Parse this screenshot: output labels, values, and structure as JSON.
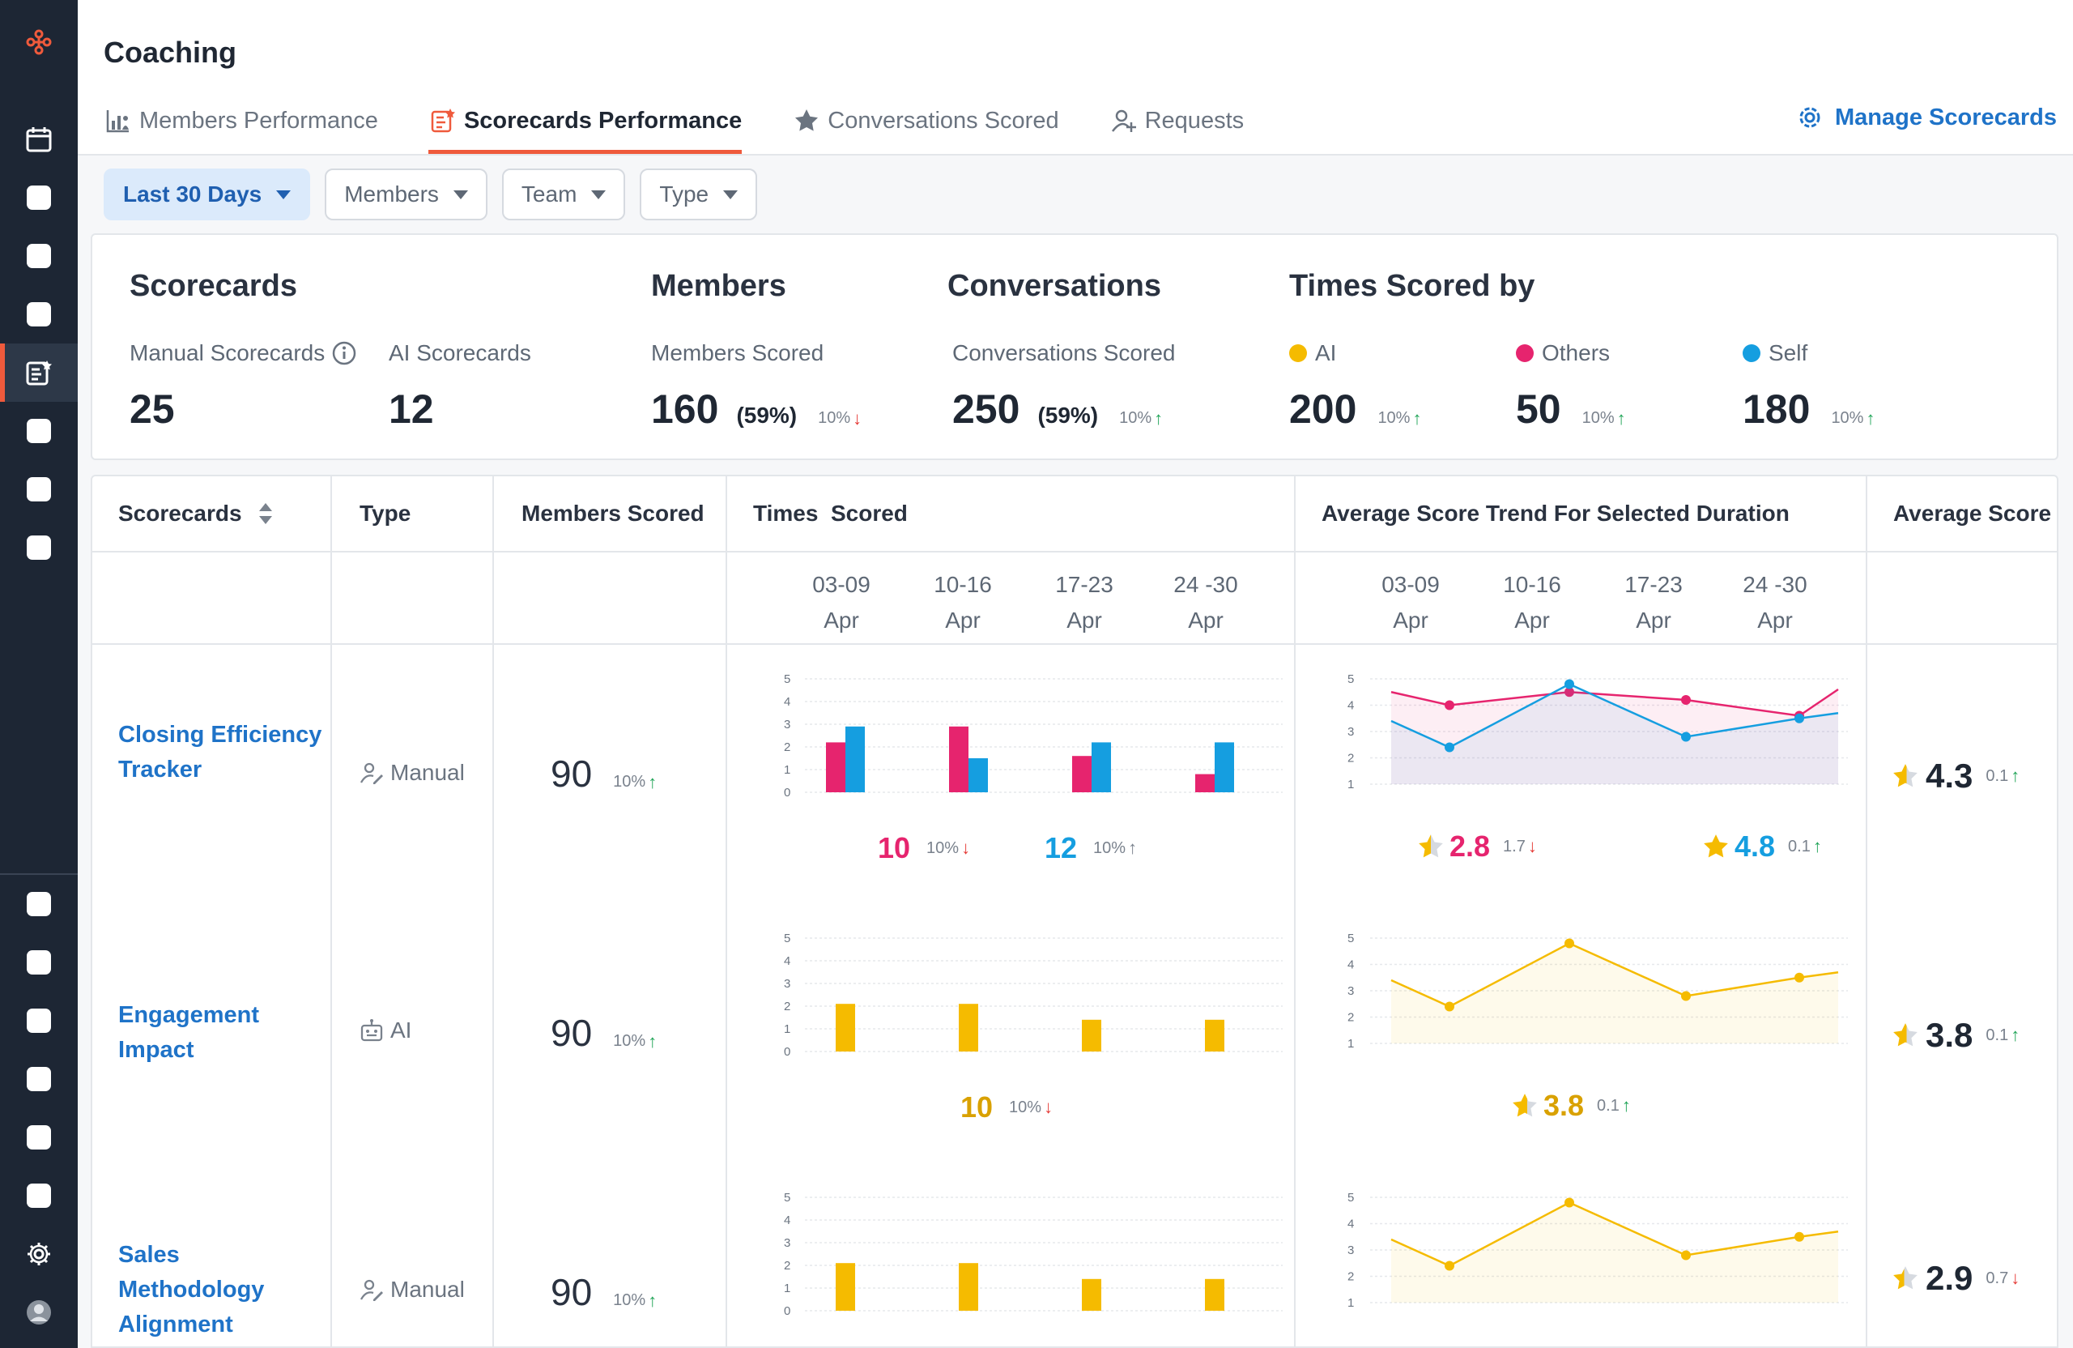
{
  "header": {
    "title": "Coaching",
    "tabs": [
      {
        "label": "Members Performance",
        "icon": "bar-chart-people-icon"
      },
      {
        "label": "Scorecards Performance",
        "icon": "scorecard-icon",
        "active": true
      },
      {
        "label": "Conversations Scored",
        "icon": "star-icon"
      },
      {
        "label": "Requests",
        "icon": "user-request-icon"
      }
    ],
    "manage_label": "Manage Scorecards"
  },
  "filters": [
    {
      "label": "Last 30 Days",
      "active": true
    },
    {
      "label": "Members"
    },
    {
      "label": "Team"
    },
    {
      "label": "Type"
    }
  ],
  "summary": {
    "scorecards": {
      "heading": "Scorecards",
      "manual_label": "Manual Scorecards",
      "manual_value": "25",
      "ai_label": "AI Scorecards",
      "ai_value": "12"
    },
    "members": {
      "heading": "Members",
      "label": "Members Scored",
      "value": "160",
      "pct": "(59%)",
      "delta": "10%",
      "dir": "down"
    },
    "conversations": {
      "heading": "Conversations",
      "label": "Conversations Scored",
      "value": "250",
      "pct": "(59%)",
      "delta": "10%",
      "dir": "up"
    },
    "times_scored": {
      "heading": "Times Scored by",
      "items": [
        {
          "label": "AI",
          "value": "200",
          "delta": "10%",
          "dir": "up",
          "color": "#f5bb00"
        },
        {
          "label": "Others",
          "value": "50",
          "delta": "10%",
          "dir": "up",
          "color": "#e6246e"
        },
        {
          "label": "Self",
          "value": "180",
          "delta": "10%",
          "dir": "up",
          "color": "#159ee0"
        }
      ]
    }
  },
  "table": {
    "headers": {
      "scorecards": "Scorecards",
      "type": "Type",
      "members_scored": "Members Scored",
      "times_scored": "Times  Scored",
      "trend": "Average Score Trend For Selected Duration",
      "average": "Average Score"
    },
    "weeks": [
      {
        "range": "03-09",
        "month": "Apr"
      },
      {
        "range": "10-16",
        "month": "Apr"
      },
      {
        "range": "17-23",
        "month": "Apr"
      },
      {
        "range": "24 -30",
        "month": "Apr"
      }
    ],
    "axis_ticks": [
      "5",
      "4",
      "3",
      "2",
      "1",
      "0"
    ],
    "trend_ticks": [
      "5",
      "4",
      "3",
      "2",
      "1"
    ],
    "rows": [
      {
        "name": "Closing Efficiency Tracker",
        "type": "Manual",
        "type_icon": "manual-user-icon",
        "members": "90",
        "members_delta": "10%",
        "members_dir": "up",
        "times_legend": [
          {
            "value": "10",
            "delta": "10%",
            "dir": "down",
            "color": "#e6246e"
          },
          {
            "value": "12",
            "delta": "10%",
            "dir": "up-grey",
            "color": "#159ee0"
          }
        ],
        "trend_legend": [
          {
            "value": "2.8",
            "delta": "1.7",
            "dir": "down",
            "color": "#e6246e",
            "star": "half"
          },
          {
            "value": "4.8",
            "delta": "0.1",
            "dir": "up",
            "color": "#159ee0",
            "star": "full"
          }
        ],
        "average": "4.3",
        "average_delta": "0.1",
        "average_dir": "up"
      },
      {
        "name": "Engagement Impact",
        "type": "AI",
        "type_icon": "robot-icon",
        "members": "90",
        "members_delta": "10%",
        "members_dir": "up",
        "times_legend": [
          {
            "value": "10",
            "delta": "10%",
            "dir": "down",
            "color": "#d9a100"
          }
        ],
        "trend_legend": [
          {
            "value": "3.8",
            "delta": "0.1",
            "dir": "up",
            "color": "#d9a100",
            "star": "half"
          }
        ],
        "average": "3.8",
        "average_delta": "0.1",
        "average_dir": "up"
      },
      {
        "name": "Sales Methodology Alignment",
        "type": "Manual",
        "type_icon": "manual-user-icon",
        "members": "90",
        "members_delta": "10%",
        "members_dir": "up",
        "times_legend": [],
        "trend_legend": [],
        "average": "2.9",
        "average_delta": "0.7",
        "average_dir": "down"
      }
    ]
  },
  "chart_data": [
    {
      "type": "bar",
      "name": "closing-times-scored",
      "categories": [
        "03-09 Apr",
        "10-16 Apr",
        "17-23 Apr",
        "24 -30 Apr"
      ],
      "ylim": [
        0,
        5
      ],
      "series": [
        {
          "color": "#e6246e",
          "values": [
            2.2,
            2.9,
            1.6,
            0.8
          ]
        },
        {
          "color": "#159ee0",
          "values": [
            2.9,
            1.5,
            2.2,
            2.2
          ]
        }
      ]
    },
    {
      "type": "line",
      "name": "closing-trend",
      "categories": [
        "03-09 Apr",
        "10-16 Apr",
        "17-23 Apr",
        "24 -30 Apr"
      ],
      "ylim": [
        1,
        5
      ],
      "series": [
        {
          "color": "#e6246e",
          "start": 4.5,
          "values": [
            4.0,
            4.5,
            4.2,
            3.6
          ],
          "end": 4.6
        },
        {
          "color": "#159ee0",
          "start": 3.4,
          "values": [
            2.4,
            4.8,
            2.8,
            3.5
          ],
          "end": 3.7
        }
      ]
    },
    {
      "type": "bar",
      "name": "engagement-times-scored",
      "categories": [
        "03-09 Apr",
        "10-16 Apr",
        "17-23 Apr",
        "24 -30 Apr"
      ],
      "ylim": [
        0,
        5
      ],
      "series": [
        {
          "color": "#f5bb00",
          "values": [
            2.1,
            2.1,
            1.4,
            1.4
          ]
        }
      ]
    },
    {
      "type": "line",
      "name": "engagement-trend",
      "categories": [
        "03-09 Apr",
        "10-16 Apr",
        "17-23 Apr",
        "24 -30 Apr"
      ],
      "ylim": [
        1,
        5
      ],
      "series": [
        {
          "color": "#f5bb00",
          "start": 3.4,
          "values": [
            2.4,
            4.8,
            2.8,
            3.5
          ],
          "end": 3.7
        }
      ]
    },
    {
      "type": "bar",
      "name": "sales-times-scored",
      "categories": [
        "03-09 Apr",
        "10-16 Apr",
        "17-23 Apr",
        "24 -30 Apr"
      ],
      "ylim": [
        0,
        5
      ],
      "series": [
        {
          "color": "#f5bb00",
          "values": [
            2.1,
            2.1,
            1.4,
            1.4
          ]
        }
      ]
    },
    {
      "type": "line",
      "name": "sales-trend",
      "categories": [
        "03-09 Apr",
        "10-16 Apr",
        "17-23 Apr",
        "24 -30 Apr"
      ],
      "ylim": [
        1,
        5
      ],
      "series": [
        {
          "color": "#f5bb00",
          "start": 3.4,
          "values": [
            2.4,
            4.8,
            2.8,
            3.5
          ],
          "end": 3.7
        }
      ]
    }
  ]
}
